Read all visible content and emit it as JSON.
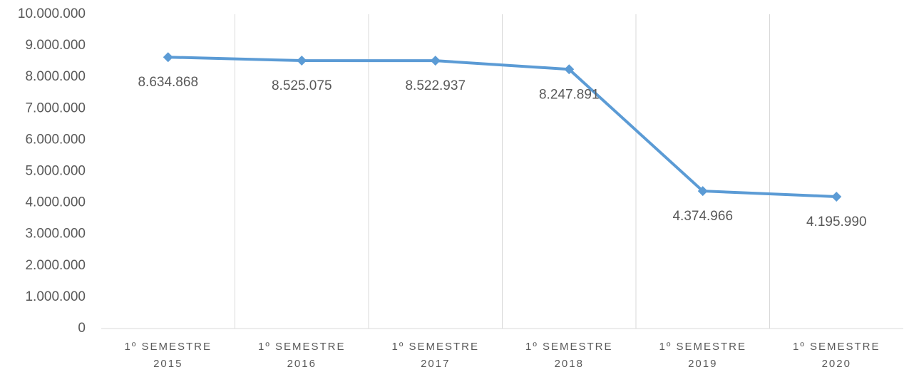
{
  "chart_data": {
    "type": "line",
    "categories": [
      "1º SEMESTRE\n2015",
      "1º SEMESTRE\n2016",
      "1º SEMESTRE\n2017",
      "1º SEMESTRE\n2018",
      "1º SEMESTRE\n2019",
      "1º SEMESTRE\n2020"
    ],
    "series": [
      {
        "color": "#5b9bd5",
        "values": [
          8634868,
          8525075,
          8522937,
          8247891,
          4374966,
          4195990
        ],
        "value_labels": [
          "8.634.868",
          "8.525.075",
          "8.522.937",
          "8.247.891",
          "4.374.966",
          "4.195.990"
        ]
      }
    ],
    "ylim": [
      0,
      10000000
    ],
    "yticks": [
      0,
      {
        "value": 1000000,
        "label": "1.000.000"
      },
      {
        "value": 2000000,
        "label": "2.000.000"
      },
      {
        "value": 3000000,
        "label": "3.000.000"
      },
      {
        "value": 4000000,
        "label": "4.000.000"
      },
      {
        "value": 5000000,
        "label": "5.000.000"
      },
      {
        "value": 6000000,
        "label": "6.000.000"
      },
      {
        "value": 7000000,
        "label": "7.000.000"
      },
      {
        "value": 8000000,
        "label": "8.000.000"
      },
      {
        "value": 9000000,
        "label": "9.000.000"
      },
      {
        "value": 10000000,
        "label": "10.000.000"
      }
    ]
  }
}
